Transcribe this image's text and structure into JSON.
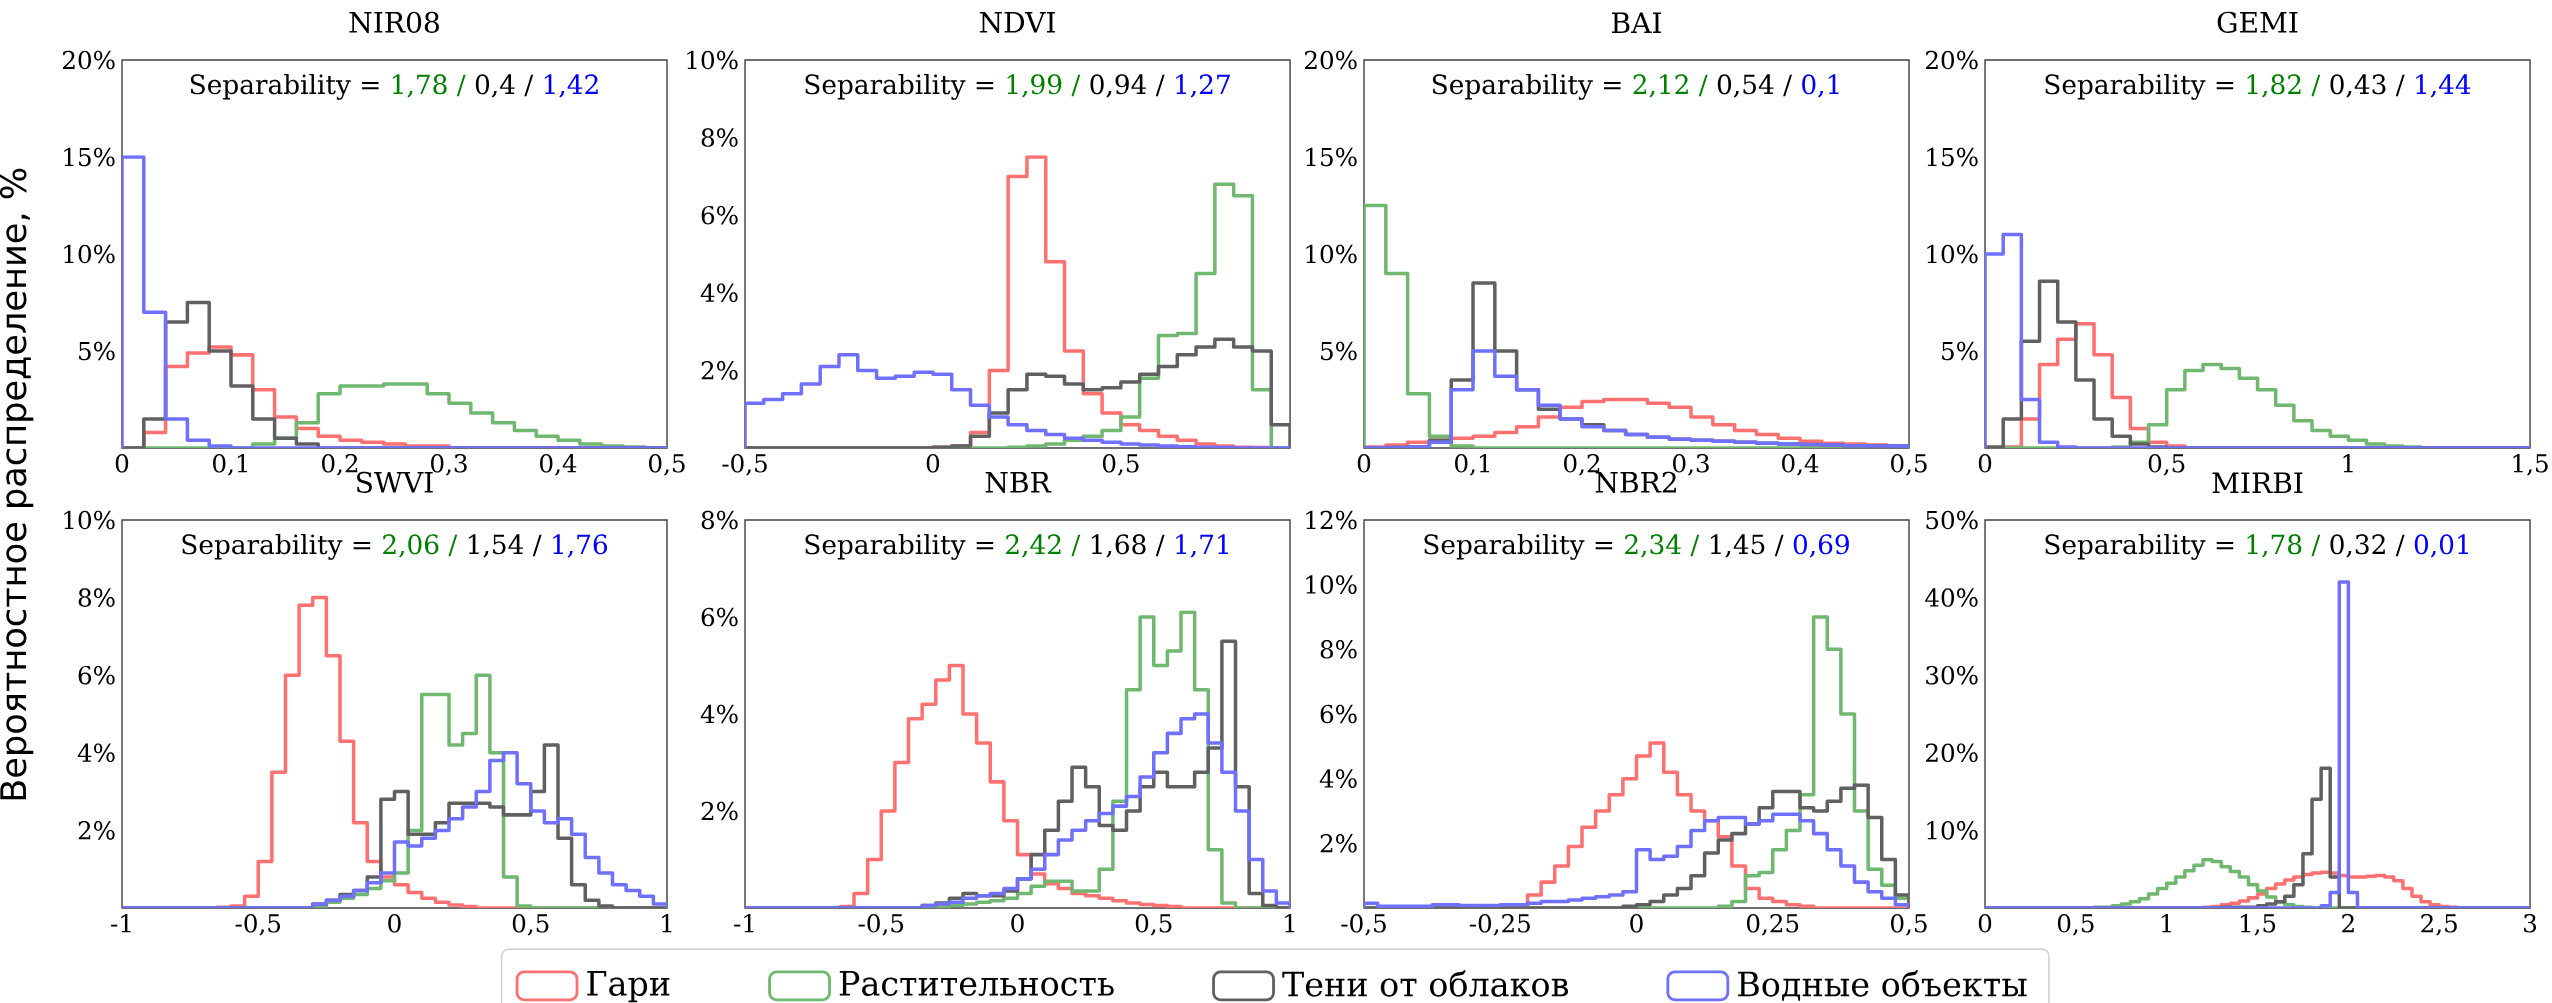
{
  "chart_data": [
    {
      "type": "histogram",
      "title": "NIR08",
      "ylabel": "Вероятностное распределение, %",
      "legend": "bottom",
      "annotations": [
        "Separability =",
        "1,78 /",
        "0,4 /",
        "1,42"
      ],
      "bins": [
        0,
        0.02,
        0.04,
        0.06,
        0.08,
        0.1,
        0.12,
        0.14,
        0.16,
        0.18,
        0.2,
        0.22,
        0.24,
        0.26,
        0.28,
        0.3,
        0.32,
        0.34,
        0.36,
        0.38,
        0.4,
        0.42,
        0.44,
        0.46,
        0.48,
        0.5
      ],
      "xlim": [
        0,
        0.5
      ],
      "ylim": [
        0,
        20
      ],
      "xticks": [
        0,
        {
          "value": 0.1,
          "label": "0,1"
        },
        {
          "value": 0.2,
          "label": "0,2"
        },
        {
          "value": 0.3,
          "label": "0,3"
        },
        {
          "value": 0.4,
          "label": "0,4"
        },
        {
          "value": 0.5,
          "label": "0,5"
        }
      ],
      "yticks": [
        {
          "value": 5,
          "label": "5%"
        },
        {
          "value": 10,
          "label": "10%"
        },
        {
          "value": 15,
          "label": "15%"
        },
        {
          "value": 20,
          "label": "20%"
        }
      ],
      "series": [
        {
          "name": "Гари",
          "color": "#ff7070",
          "values": [
            0,
            0.8,
            4.2,
            4.9,
            5.2,
            4.8,
            3,
            1.6,
            1,
            0.6,
            0.4,
            0.3,
            0.2,
            0.1,
            0.1,
            0,
            0,
            0,
            0,
            0,
            0,
            0,
            0,
            0,
            0
          ]
        },
        {
          "name": "Растительность",
          "color": "#70b870",
          "values": [
            0,
            0,
            0,
            0,
            0,
            0,
            0.2,
            0.5,
            1.3,
            2.8,
            3.2,
            3.2,
            3.3,
            3.3,
            2.8,
            2.3,
            1.8,
            1.3,
            0.9,
            0.6,
            0.4,
            0.2,
            0.1,
            0.05,
            0
          ]
        },
        {
          "name": "Тени от облаков",
          "color": "#606060",
          "values": [
            0,
            1.5,
            6.5,
            7.5,
            5,
            3.2,
            1.5,
            0.5,
            0.2,
            0,
            0,
            0,
            0,
            0,
            0,
            0,
            0,
            0,
            0,
            0,
            0,
            0,
            0,
            0,
            0
          ]
        },
        {
          "name": "Водные объекты",
          "color": "#7070ff",
          "values": [
            15,
            7,
            1.5,
            0.4,
            0.1,
            0,
            0,
            0,
            0,
            0,
            0,
            0,
            0,
            0,
            0,
            0,
            0,
            0,
            0,
            0,
            0,
            0,
            0,
            0,
            0
          ]
        }
      ]
    },
    {
      "type": "histogram",
      "title": "NDVI",
      "annotations": [
        "Separability =",
        "1,99 /",
        "0,94 /",
        "1,27"
      ],
      "bins": [
        -0.5,
        -0.45,
        -0.4,
        -0.35,
        -0.3,
        -0.25,
        -0.2,
        -0.15,
        -0.1,
        -0.05,
        0,
        0.05,
        0.1,
        0.15,
        0.2,
        0.25,
        0.3,
        0.35,
        0.4,
        0.45,
        0.5,
        0.55,
        0.6,
        0.65,
        0.7,
        0.75,
        0.8,
        0.85,
        0.9,
        0.95
      ],
      "xlim": [
        -0.5,
        0.95
      ],
      "ylim": [
        0,
        10
      ],
      "xticks": [
        {
          "value": -0.5,
          "label": "-0,5"
        },
        0,
        {
          "value": 0.5,
          "label": "0,5"
        }
      ],
      "yticks": [
        {
          "value": 2,
          "label": "2%"
        },
        {
          "value": 4,
          "label": "4%"
        },
        {
          "value": 6,
          "label": "6%"
        },
        {
          "value": 8,
          "label": "8%"
        },
        {
          "value": 10,
          "label": "10%"
        }
      ],
      "series": [
        {
          "color": "#ff7070",
          "values": [
            0,
            0,
            0,
            0,
            0,
            0,
            0,
            0,
            0,
            0,
            0.02,
            0.05,
            0.4,
            2,
            7,
            7.5,
            4.8,
            2.5,
            1.4,
            0.9,
            0.6,
            0.45,
            0.3,
            0.2,
            0.1,
            0.05,
            0.02,
            0.01,
            0
          ]
        },
        {
          "color": "#70b870",
          "values": [
            0,
            0,
            0,
            0,
            0,
            0,
            0,
            0,
            0,
            0,
            0,
            0,
            0,
            0,
            0.02,
            0.05,
            0.1,
            0.2,
            0.3,
            0.45,
            0.8,
            1.8,
            2.9,
            2.95,
            4.5,
            6.8,
            6.5,
            1.5,
            0
          ]
        },
        {
          "color": "#606060",
          "values": [
            0,
            0,
            0,
            0,
            0,
            0,
            0,
            0,
            0,
            0,
            0.02,
            0.05,
            0.3,
            0.9,
            1.5,
            1.9,
            1.85,
            1.65,
            1.5,
            1.55,
            1.7,
            1.9,
            2.1,
            2.4,
            2.6,
            2.8,
            2.6,
            2.5,
            0.6
          ]
        },
        {
          "color": "#7070ff",
          "values": [
            1.15,
            1.25,
            1.4,
            1.65,
            2.1,
            2.4,
            2.0,
            1.8,
            1.85,
            1.95,
            1.9,
            1.5,
            1.1,
            0.8,
            0.6,
            0.45,
            0.35,
            0.25,
            0.2,
            0.15,
            0.1,
            0.08,
            0.05,
            0.03,
            0.02,
            0.01,
            0,
            0,
            0
          ]
        }
      ]
    },
    {
      "type": "histogram",
      "title": "BAI",
      "annotations": [
        "Separability =",
        "2,12 /",
        "0,54 /",
        "0,1"
      ],
      "bins": [
        0,
        0.02,
        0.04,
        0.06,
        0.08,
        0.1,
        0.12,
        0.14,
        0.16,
        0.18,
        0.2,
        0.22,
        0.24,
        0.26,
        0.28,
        0.3,
        0.32,
        0.34,
        0.36,
        0.38,
        0.4,
        0.42,
        0.44,
        0.46,
        0.48,
        0.5
      ],
      "xlim": [
        0,
        0.5
      ],
      "ylim": [
        0,
        20
      ],
      "xticks": [
        0,
        {
          "value": 0.1,
          "label": "0,1"
        },
        {
          "value": 0.2,
          "label": "0,2"
        },
        {
          "value": 0.3,
          "label": "0,3"
        },
        {
          "value": 0.4,
          "label": "0,4"
        },
        {
          "value": 0.5,
          "label": "0,5"
        }
      ],
      "yticks": [
        {
          "value": 5,
          "label": "5%"
        },
        {
          "value": 10,
          "label": "10%"
        },
        {
          "value": 15,
          "label": "15%"
        },
        {
          "value": 20,
          "label": "20%"
        }
      ],
      "series": [
        {
          "color": "#ff7070",
          "values": [
            0.05,
            0.15,
            0.3,
            0.4,
            0.5,
            0.6,
            0.8,
            1.1,
            1.6,
            2.1,
            2.4,
            2.5,
            2.5,
            2.3,
            2.1,
            1.6,
            1.2,
            0.9,
            0.7,
            0.5,
            0.35,
            0.25,
            0.2,
            0.15,
            0.1
          ]
        },
        {
          "color": "#70b870",
          "values": [
            12.5,
            9,
            2.8,
            0.6,
            0.1,
            0,
            0,
            0,
            0,
            0,
            0,
            0,
            0,
            0,
            0,
            0,
            0,
            0,
            0,
            0,
            0,
            0,
            0,
            0,
            0
          ]
        },
        {
          "color": "#606060",
          "values": [
            0,
            0.02,
            0.05,
            0.4,
            3.5,
            8.5,
            5,
            3,
            2,
            1.5,
            1.2,
            0.9,
            0.7,
            0.55,
            0.45,
            0.4,
            0.35,
            0.3,
            0.25,
            0.2,
            0.18,
            0.15,
            0.12,
            0.1,
            0.1
          ]
        },
        {
          "color": "#7070ff",
          "values": [
            0,
            0.02,
            0.05,
            0.3,
            3,
            5,
            3.7,
            3,
            2.2,
            1.5,
            1.1,
            0.9,
            0.7,
            0.55,
            0.45,
            0.4,
            0.35,
            0.3,
            0.25,
            0.2,
            0.18,
            0.15,
            0.12,
            0.1,
            0.1
          ]
        }
      ]
    },
    {
      "type": "histogram",
      "title": "GEMI",
      "annotations": [
        "Separability =",
        "1,82 /",
        "0,43 /",
        "1,44"
      ],
      "bins": [
        0,
        0.05,
        0.1,
        0.15,
        0.2,
        0.25,
        0.3,
        0.35,
        0.4,
        0.45,
        0.5,
        0.55,
        0.6,
        0.65,
        0.7,
        0.75,
        0.8,
        0.85,
        0.9,
        0.95,
        1,
        1.05,
        1.1,
        1.15,
        1.2,
        1.25,
        1.3,
        1.35,
        1.4,
        1.45,
        1.5
      ],
      "xlim": [
        0,
        1.5
      ],
      "ylim": [
        0,
        20
      ],
      "xticks": [
        0,
        {
          "value": 0.5,
          "label": "0,5"
        },
        1,
        {
          "value": 1.5,
          "label": "1,5"
        }
      ],
      "yticks": [
        {
          "value": 5,
          "label": "5%"
        },
        {
          "value": 10,
          "label": "10%"
        },
        {
          "value": 15,
          "label": "15%"
        },
        {
          "value": 20,
          "label": "20%"
        }
      ],
      "series": [
        {
          "color": "#ff7070",
          "values": [
            0,
            0.05,
            1.5,
            4.3,
            5.6,
            6.4,
            4.8,
            2.6,
            1,
            0.3,
            0.1,
            0,
            0,
            0,
            0,
            0,
            0,
            0,
            0,
            0,
            0,
            0,
            0,
            0,
            0,
            0,
            0,
            0,
            0,
            0
          ]
        },
        {
          "color": "#70b870",
          "values": [
            0,
            0,
            0,
            0,
            0,
            0,
            0,
            0.05,
            0.3,
            1.2,
            3,
            4,
            4.3,
            4.1,
            3.6,
            3,
            2.2,
            1.4,
            0.9,
            0.6,
            0.4,
            0.2,
            0.1,
            0.05,
            0,
            0,
            0,
            0,
            0,
            0
          ]
        },
        {
          "color": "#606060",
          "values": [
            0.05,
            1.5,
            5.5,
            8.6,
            6.5,
            3.5,
            1.5,
            0.6,
            0.2,
            0.05,
            0,
            0,
            0,
            0,
            0,
            0,
            0,
            0,
            0,
            0,
            0,
            0,
            0,
            0,
            0,
            0,
            0,
            0,
            0,
            0
          ]
        },
        {
          "color": "#7070ff",
          "values": [
            10,
            11,
            2.5,
            0.3,
            0.05,
            0,
            0,
            0,
            0,
            0,
            0,
            0,
            0,
            0,
            0,
            0,
            0,
            0,
            0,
            0,
            0,
            0,
            0,
            0,
            0,
            0,
            0,
            0,
            0,
            0
          ]
        }
      ]
    },
    {
      "type": "histogram",
      "title": "SWVI",
      "annotations": [
        "Separability =",
        "2,06 /",
        "1,54 /",
        "1,76"
      ],
      "bins": [
        -1,
        -0.95,
        -0.9,
        -0.85,
        -0.8,
        -0.75,
        -0.7,
        -0.65,
        -0.6,
        -0.55,
        -0.5,
        -0.45,
        -0.4,
        -0.35,
        -0.3,
        -0.25,
        -0.2,
        -0.15,
        -0.1,
        -0.05,
        0,
        0.05,
        0.1,
        0.15,
        0.2,
        0.25,
        0.3,
        0.35,
        0.4,
        0.45,
        0.5,
        0.55,
        0.6,
        0.65,
        0.7,
        0.75,
        0.8,
        0.85,
        0.9,
        0.95,
        1
      ],
      "xlim": [
        -1,
        1
      ],
      "ylim": [
        0,
        10
      ],
      "xticks": [
        -1,
        {
          "value": -0.5,
          "label": "-0,5"
        },
        0,
        {
          "value": 0.5,
          "label": "0,5"
        },
        1
      ],
      "yticks": [
        {
          "value": 2,
          "label": "2%"
        },
        {
          "value": 4,
          "label": "4%"
        },
        {
          "value": 6,
          "label": "6%"
        },
        {
          "value": 8,
          "label": "8%"
        },
        {
          "value": 10,
          "label": "10%"
        }
      ],
      "series": [
        {
          "color": "#ff7070",
          "values": [
            0,
            0,
            0,
            0,
            0,
            0,
            0,
            0.02,
            0.05,
            0.3,
            1.2,
            3.5,
            6,
            7.8,
            8,
            6.5,
            4.3,
            2.2,
            1.2,
            0.8,
            0.6,
            0.4,
            0.25,
            0.15,
            0.08,
            0.04,
            0,
            0,
            0,
            0,
            0,
            0,
            0,
            0,
            0,
            0,
            0,
            0,
            0,
            0
          ]
        },
        {
          "color": "#70b870",
          "values": [
            0,
            0,
            0,
            0,
            0,
            0,
            0,
            0,
            0,
            0,
            0,
            0,
            0,
            0,
            0.05,
            0.15,
            0.25,
            0.35,
            0.5,
            0.7,
            0.9,
            2,
            5.5,
            5.5,
            4.2,
            4.5,
            6,
            4,
            0.8,
            0.05,
            0,
            0,
            0,
            0,
            0,
            0,
            0,
            0,
            0,
            0
          ]
        },
        {
          "color": "#606060",
          "values": [
            0,
            0,
            0,
            0,
            0,
            0,
            0,
            0,
            0,
            0,
            0,
            0,
            0,
            0,
            0.1,
            0.2,
            0.35,
            0.45,
            0.8,
            2.8,
            3,
            1.9,
            1.9,
            2.2,
            2.7,
            2.7,
            2.7,
            2.6,
            2.4,
            2.4,
            3,
            4.2,
            1.8,
            0.6,
            0.2,
            0.05,
            0,
            0,
            0,
            0
          ]
        },
        {
          "color": "#7070ff",
          "values": [
            0,
            0,
            0,
            0,
            0,
            0,
            0,
            0,
            0,
            0,
            0,
            0,
            0,
            0,
            0.1,
            0.2,
            0.3,
            0.45,
            0.65,
            0.9,
            1.7,
            1.6,
            1.8,
            2,
            2.3,
            2.6,
            3,
            3.8,
            4,
            3.2,
            2.5,
            2.2,
            2.3,
            1.9,
            1.3,
            0.9,
            0.6,
            0.45,
            0.3,
            0.1
          ]
        }
      ]
    },
    {
      "type": "histogram",
      "title": "NBR",
      "annotations": [
        "Separability =",
        "2,42 /",
        "1,68 /",
        "1,71"
      ],
      "bins": [
        -1,
        -0.95,
        -0.9,
        -0.85,
        -0.8,
        -0.75,
        -0.7,
        -0.65,
        -0.6,
        -0.55,
        -0.5,
        -0.45,
        -0.4,
        -0.35,
        -0.3,
        -0.25,
        -0.2,
        -0.15,
        -0.1,
        -0.05,
        0,
        0.05,
        0.1,
        0.15,
        0.2,
        0.25,
        0.3,
        0.35,
        0.4,
        0.45,
        0.5,
        0.55,
        0.6,
        0.65,
        0.7,
        0.75,
        0.8,
        0.85,
        0.9,
        0.95,
        1
      ],
      "xlim": [
        -1,
        1
      ],
      "ylim": [
        0,
        8
      ],
      "xticks": [
        -1,
        {
          "value": -0.5,
          "label": "-0,5"
        },
        0,
        {
          "value": 0.5,
          "label": "0,5"
        },
        1
      ],
      "yticks": [
        {
          "value": 2,
          "label": "2%"
        },
        {
          "value": 4,
          "label": "4%"
        },
        {
          "value": 6,
          "label": "6%"
        },
        {
          "value": 8,
          "label": "8%"
        }
      ],
      "series": [
        {
          "color": "#ff7070",
          "values": [
            0,
            0,
            0,
            0,
            0,
            0,
            0,
            0.03,
            0.3,
            1,
            2,
            3,
            3.9,
            4.2,
            4.7,
            5,
            4,
            3.4,
            2.6,
            1.8,
            1.1,
            0.7,
            0.5,
            0.4,
            0.3,
            0.25,
            0.2,
            0.15,
            0.1,
            0.07,
            0.05,
            0.03,
            0,
            0,
            0,
            0,
            0,
            0,
            0,
            0
          ]
        },
        {
          "color": "#70b870",
          "values": [
            0,
            0,
            0,
            0,
            0,
            0,
            0,
            0,
            0,
            0,
            0,
            0,
            0,
            0,
            0.03,
            0.05,
            0.08,
            0.12,
            0.15,
            0.2,
            0.3,
            0.45,
            0.55,
            0.55,
            0.35,
            0.35,
            0.8,
            2.2,
            4.5,
            6,
            5,
            5.3,
            6.1,
            4.5,
            1.2,
            0.1,
            0,
            0,
            0,
            0
          ]
        },
        {
          "color": "#606060",
          "values": [
            0,
            0,
            0,
            0,
            0,
            0,
            0,
            0,
            0,
            0,
            0,
            0,
            0,
            0.05,
            0.1,
            0.2,
            0.3,
            0.25,
            0.25,
            0.35,
            0.6,
            1.1,
            1.6,
            2.2,
            2.9,
            2.5,
            1.7,
            1.6,
            2,
            2.5,
            2.8,
            2.5,
            2.5,
            2.8,
            3.3,
            5.5,
            2.5,
            0.3,
            0.05,
            0
          ]
        },
        {
          "color": "#7070ff",
          "values": [
            0,
            0,
            0,
            0,
            0,
            0,
            0,
            0,
            0,
            0,
            0,
            0,
            0,
            0.05,
            0.08,
            0.12,
            0.2,
            0.25,
            0.3,
            0.4,
            0.6,
            0.8,
            1.1,
            1.4,
            1.6,
            1.8,
            1.95,
            2.1,
            2.3,
            2.7,
            3.2,
            3.6,
            3.9,
            4,
            3.4,
            2.8,
            2,
            1,
            0.35,
            0.1
          ]
        }
      ]
    },
    {
      "type": "histogram",
      "title": "NBR2",
      "annotations": [
        "Separability =",
        "2,34 /",
        "1,45 /",
        "0,69"
      ],
      "bins": [
        -0.5,
        -0.475,
        -0.45,
        -0.425,
        -0.4,
        -0.375,
        -0.35,
        -0.325,
        -0.3,
        -0.275,
        -0.25,
        -0.225,
        -0.2,
        -0.175,
        -0.15,
        -0.125,
        -0.1,
        -0.075,
        -0.05,
        -0.025,
        0,
        0.025,
        0.05,
        0.075,
        0.1,
        0.125,
        0.15,
        0.175,
        0.2,
        0.225,
        0.25,
        0.275,
        0.3,
        0.325,
        0.35,
        0.375,
        0.4,
        0.425,
        0.45,
        0.475,
        0.5
      ],
      "xlim": [
        -0.5,
        0.5
      ],
      "ylim": [
        0,
        12
      ],
      "xticks": [
        {
          "value": -0.5,
          "label": "-0,5"
        },
        {
          "value": -0.25,
          "label": "-0,25"
        },
        0,
        {
          "value": 0.25,
          "label": "0,25"
        },
        {
          "value": 0.5,
          "label": "0,5"
        }
      ],
      "yticks": [
        {
          "value": 2,
          "label": "2%"
        },
        {
          "value": 4,
          "label": "4%"
        },
        {
          "value": 6,
          "label": "6%"
        },
        {
          "value": 8,
          "label": "8%"
        },
        {
          "value": 10,
          "label": "10%"
        },
        {
          "value": 12,
          "label": "12%"
        }
      ],
      "series": [
        {
          "color": "#ff7070",
          "values": [
            0,
            0,
            0,
            0,
            0,
            0,
            0,
            0,
            0,
            0,
            0,
            0.05,
            0.4,
            0.8,
            1.3,
            1.9,
            2.5,
            3,
            3.5,
            4,
            4.7,
            5.1,
            4.2,
            3.5,
            3,
            2.7,
            2.2,
            1.3,
            0.6,
            0.3,
            0.2,
            0.1,
            0.05,
            0,
            0,
            0,
            0,
            0,
            0,
            0
          ]
        },
        {
          "color": "#70b870",
          "values": [
            0,
            0,
            0,
            0,
            0,
            0,
            0,
            0,
            0,
            0,
            0,
            0,
            0,
            0,
            0,
            0,
            0,
            0,
            0,
            0,
            0,
            0,
            0,
            0,
            0,
            0,
            0.05,
            0.2,
            1,
            1.1,
            1.8,
            2.4,
            3.5,
            9,
            8,
            6,
            3,
            1.2,
            0.7,
            0.3
          ]
        },
        {
          "color": "#606060",
          "values": [
            0,
            0,
            0,
            0,
            0,
            0,
            0,
            0,
            0,
            0,
            0,
            0,
            0,
            0,
            0,
            0,
            0,
            0,
            0,
            0.05,
            0.1,
            0.2,
            0.4,
            0.6,
            1,
            1.7,
            2.1,
            2.3,
            2.6,
            3.1,
            3.6,
            3.6,
            3.1,
            3,
            3.3,
            3.7,
            3.8,
            2.8,
            1.5,
            0.4
          ]
        },
        {
          "color": "#7070ff",
          "values": [
            0.15,
            0.05,
            0.05,
            0.05,
            0.05,
            0.1,
            0.1,
            0.08,
            0.08,
            0.08,
            0.1,
            0.1,
            0.15,
            0.2,
            0.2,
            0.25,
            0.3,
            0.35,
            0.4,
            0.5,
            1.8,
            1.5,
            1.6,
            1.9,
            2.4,
            2.7,
            2.8,
            2.8,
            2.6,
            2.7,
            2.9,
            2.9,
            2.7,
            2.3,
            1.8,
            1.3,
            0.8,
            0.5,
            0.3,
            0.1
          ]
        }
      ]
    },
    {
      "type": "histogram",
      "title": "MIRBI",
      "annotations": [
        "Separability =",
        "1,78 /",
        "0,32 /",
        "0,01"
      ],
      "bins": [
        0,
        0.05,
        0.1,
        0.15,
        0.2,
        0.25,
        0.3,
        0.35,
        0.4,
        0.45,
        0.5,
        0.55,
        0.6,
        0.65,
        0.7,
        0.75,
        0.8,
        0.85,
        0.9,
        0.95,
        1,
        1.05,
        1.1,
        1.15,
        1.2,
        1.25,
        1.3,
        1.35,
        1.4,
        1.45,
        1.5,
        1.55,
        1.6,
        1.65,
        1.7,
        1.75,
        1.8,
        1.85,
        1.9,
        1.95,
        2,
        2.05,
        2.1,
        2.15,
        2.2,
        2.25,
        2.3,
        2.35,
        2.4,
        2.45,
        2.5,
        2.55,
        2.6,
        2.65,
        2.7,
        2.75,
        2.8,
        2.85,
        2.9,
        2.95,
        3
      ],
      "xlim": [
        0,
        3
      ],
      "ylim": [
        0,
        50
      ],
      "xticks": [
        0,
        {
          "value": 0.5,
          "label": "0,5"
        },
        1,
        {
          "value": 1.5,
          "label": "1,5"
        },
        2,
        {
          "value": 2.5,
          "label": "2,5"
        },
        3
      ],
      "yticks": [
        {
          "value": 10,
          "label": "10%"
        },
        {
          "value": 20,
          "label": "20%"
        },
        {
          "value": 30,
          "label": "30%"
        },
        {
          "value": 40,
          "label": "40%"
        },
        {
          "value": 50,
          "label": "50%"
        }
      ],
      "series": [
        {
          "color": "#ff7070",
          "values": [
            0,
            0,
            0,
            0,
            0,
            0,
            0,
            0,
            0,
            0,
            0,
            0,
            0,
            0,
            0,
            0,
            0,
            0,
            0,
            0,
            0,
            0,
            0,
            0,
            0.1,
            0.2,
            0.4,
            0.6,
            0.9,
            1.3,
            1.8,
            2.5,
            3.1,
            3.6,
            4,
            4.3,
            4.5,
            4.6,
            4.5,
            4.2,
            4,
            4,
            4.1,
            4.2,
            4,
            3.5,
            2.5,
            1.5,
            0.8,
            0.4,
            0.2,
            0.1,
            0,
            0,
            0,
            0,
            0,
            0,
            0,
            0
          ]
        },
        {
          "color": "#70b870",
          "values": [
            0,
            0,
            0,
            0,
            0,
            0,
            0,
            0,
            0,
            0,
            0,
            0,
            0.1,
            0.1,
            0.3,
            0.5,
            0.8,
            1.2,
            1.8,
            2.5,
            3.2,
            4,
            4.8,
            5.5,
            6.2,
            6,
            5.3,
            4.7,
            4,
            3,
            2.2,
            1.4,
            0.8,
            0.4,
            0.2,
            0.1,
            0,
            0,
            0,
            0,
            0,
            0,
            0,
            0,
            0,
            0,
            0,
            0,
            0,
            0,
            0,
            0,
            0,
            0,
            0,
            0,
            0,
            0,
            0,
            0
          ]
        },
        {
          "color": "#606060",
          "values": [
            0,
            0,
            0,
            0,
            0,
            0,
            0,
            0,
            0,
            0,
            0,
            0,
            0,
            0,
            0,
            0,
            0,
            0,
            0,
            0,
            0,
            0,
            0,
            0,
            0,
            0,
            0.1,
            0.1,
            0.1,
            0.1,
            0.3,
            0.5,
            0.8,
            1.5,
            3,
            7,
            14,
            18,
            4,
            0,
            0,
            0,
            0,
            0,
            0,
            0,
            0,
            0,
            0,
            0,
            0,
            0,
            0,
            0,
            0,
            0,
            0,
            0,
            0,
            0
          ]
        },
        {
          "color": "#7070ff",
          "values": [
            0,
            0,
            0,
            0,
            0,
            0,
            0,
            0,
            0,
            0,
            0,
            0,
            0,
            0,
            0,
            0,
            0,
            0,
            0,
            0,
            0,
            0,
            0,
            0,
            0,
            0,
            0,
            0,
            0,
            0,
            0,
            0,
            0,
            0,
            0,
            0,
            0,
            0.3,
            2,
            42,
            2,
            0,
            0,
            0,
            0,
            0,
            0,
            0,
            0,
            0,
            0,
            0,
            0,
            0,
            0,
            0,
            0,
            0,
            0,
            0
          ]
        }
      ]
    }
  ]
}
